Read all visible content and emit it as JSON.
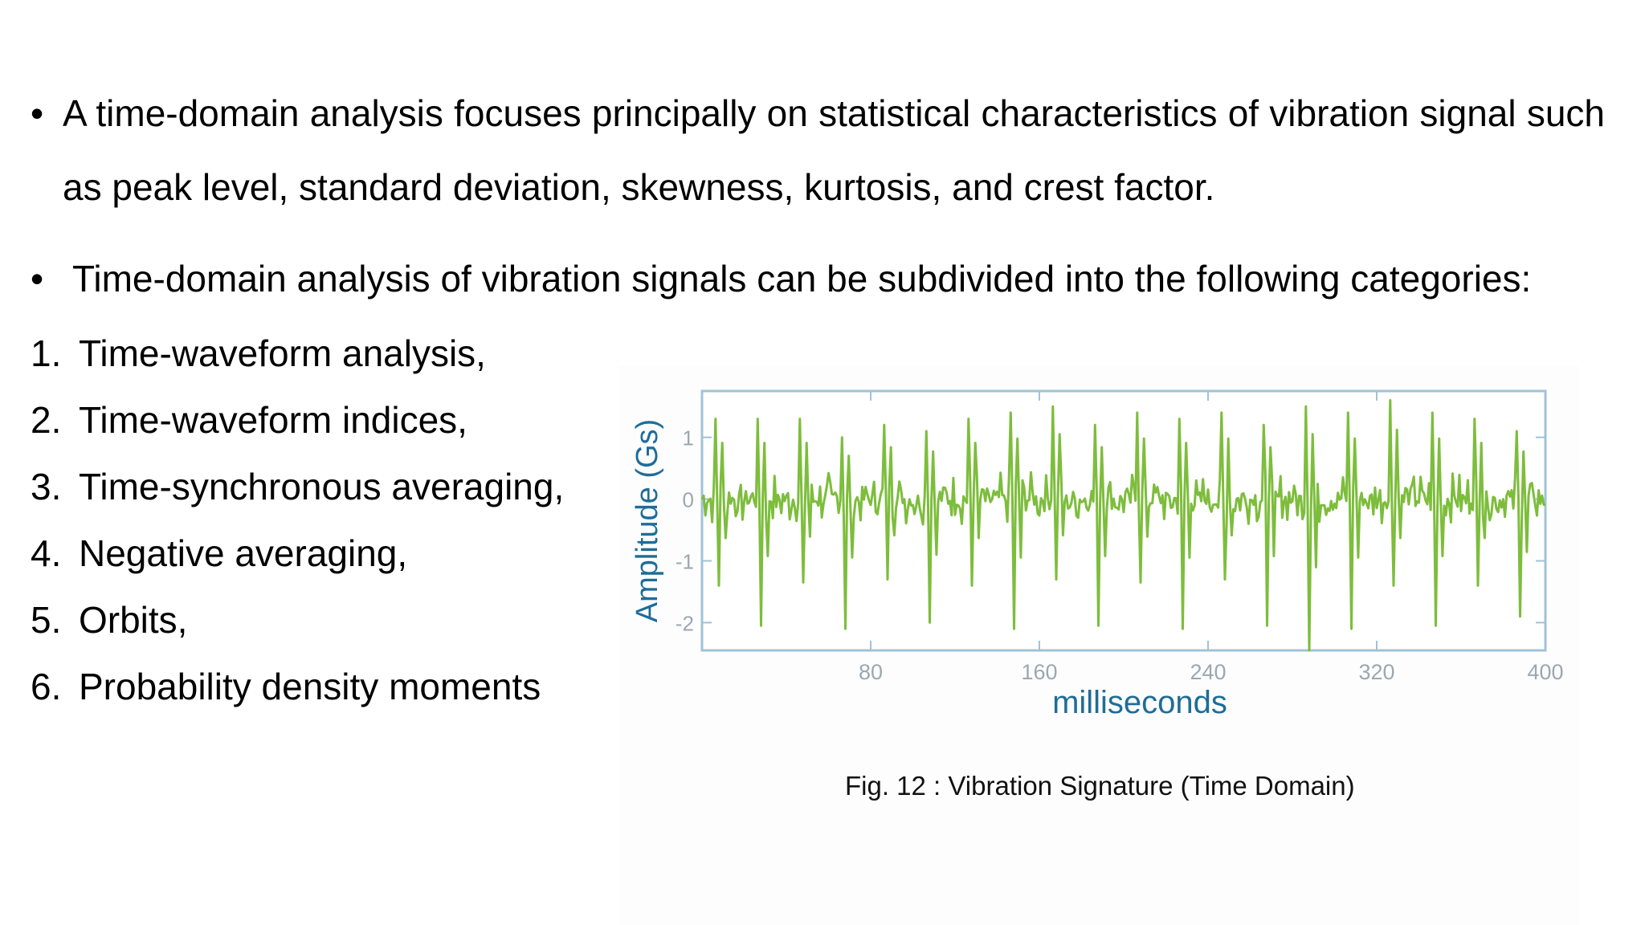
{
  "bullets": [
    {
      "marker": "•",
      "text": "A time-domain analysis focuses principally on statistical characteristics of vibration signal such as peak level, standard deviation, skewness, kurtosis, and crest factor."
    },
    {
      "marker": "•",
      "text": "Time-domain analysis of vibration signals can be subdivided into the following categories:"
    }
  ],
  "categories": [
    {
      "num": "1.",
      "text": "Time-waveform analysis,"
    },
    {
      "num": "2.",
      "text": "Time-waveform indices,"
    },
    {
      "num": "3.",
      "text": "Time-synchronous averaging,"
    },
    {
      "num": "4.",
      "text": "Negative averaging,"
    },
    {
      "num": "5.",
      "text": "Orbits,"
    },
    {
      "num": "6.",
      "text": "Probability density moments"
    }
  ],
  "caption": "Fig. 12 : Vibration Signature (Time Domain)",
  "colors": {
    "line": "#7dbd3c",
    "axis": "#9fc3d8",
    "label": "#1e6d98",
    "tick_text": "#9aa8b2"
  },
  "chart_data": {
    "type": "line",
    "xlabel": "milliseconds",
    "ylabel": "Amplitude (Gs)",
    "xlim": [
      0,
      400
    ],
    "ylim": [
      -2.45,
      1.75
    ],
    "xticks": [
      80,
      160,
      240,
      320,
      400
    ],
    "yticks": [
      1,
      0,
      -1,
      -2
    ],
    "grid": false,
    "series": [
      {
        "period_ms": 20,
        "phase_ms": 8,
        "impulse_peaks": [
          1.3,
          1.3,
          1.3,
          1.0,
          1.2,
          1.1,
          1.3,
          1.4,
          1.5,
          1.2,
          1.4,
          1.3,
          1.4,
          1.2,
          1.5,
          1.4,
          1.6,
          1.4,
          1.3,
          1.1
        ],
        "impulse_troughs": [
          -1.4,
          -2.05,
          -1.35,
          -2.1,
          -1.3,
          -2.0,
          -1.4,
          -2.1,
          -1.3,
          -2.05,
          -1.35,
          -2.1,
          -1.3,
          -2.05,
          -2.45,
          -2.1,
          -1.4,
          -2.05,
          -1.4,
          -1.9
        ],
        "noise_amplitude": 0.45
      }
    ]
  }
}
